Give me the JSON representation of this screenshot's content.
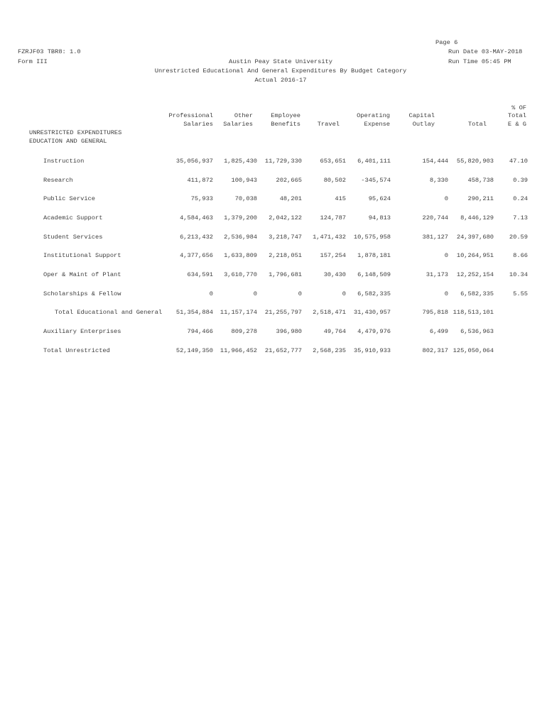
{
  "page": {
    "page_label": "Page 6",
    "report_id": "FZRJF03 TBR8: 1.0",
    "run_date": "Run Date 03-MAY-2018",
    "form": "Form III",
    "university": "Austin Peay State University",
    "title": "Unrestricted Educational And General Expenditures By Budget Category",
    "subtitle": "Actual 2016-17",
    "run_time": "Run Time 05:45 PM"
  },
  "table": {
    "header": {
      "pct_l1": "% OF",
      "pct_l2": "Total",
      "pct_l3": "E & G",
      "col1_l1": "Professional",
      "col1_l2": "Salaries",
      "col2_l1": "Other",
      "col2_l2": "Salaries",
      "col3_l1": "Employee",
      "col3_l2": "Benefits",
      "col4_l2": "Travel",
      "col5_l1": "Operating",
      "col5_l2": "Expense",
      "col6_l1": "Capital",
      "col6_l2": "Outlay",
      "col7_l2": "Total"
    },
    "section_line1": "UNRESTRICTED EXPENDITURES",
    "section_line2": "EDUCATION AND GENERAL",
    "rows": [
      {
        "label": "Instruction",
        "values": [
          "35,056,937",
          "1,825,430",
          "11,729,330",
          "653,651",
          "6,401,111",
          "154,444",
          "55,820,903",
          "47.10"
        ]
      },
      {
        "label": "Research",
        "values": [
          "411,872",
          "100,943",
          "202,665",
          "80,502",
          "-345,574",
          "8,330",
          "458,738",
          "0.39"
        ]
      },
      {
        "label": "Public Service",
        "values": [
          "75,933",
          "70,038",
          "48,201",
          "415",
          "95,624",
          "0",
          "290,211",
          "0.24"
        ]
      },
      {
        "label": "Academic Support",
        "values": [
          "4,584,463",
          "1,379,200",
          "2,042,122",
          "124,787",
          "94,813",
          "220,744",
          "8,446,129",
          "7.13"
        ]
      },
      {
        "label": "Student Services",
        "values": [
          "6,213,432",
          "2,536,984",
          "3,218,747",
          "1,471,432",
          "10,575,958",
          "381,127",
          "24,397,680",
          "20.59"
        ]
      },
      {
        "label": "Institutional Support",
        "values": [
          "4,377,656",
          "1,633,809",
          "2,218,051",
          "157,254",
          "1,878,181",
          "0",
          "10,264,951",
          "8.66"
        ]
      },
      {
        "label": "Oper & Maint of Plant",
        "values": [
          "634,591",
          "3,610,770",
          "1,796,681",
          "30,430",
          "6,148,509",
          "31,173",
          "12,252,154",
          "10.34"
        ]
      },
      {
        "label": "Scholarships & Fellow",
        "values": [
          "0",
          "0",
          "0",
          "0",
          "6,582,335",
          "0",
          "6,582,335",
          "5.55"
        ]
      },
      {
        "label": "Total Educational and General",
        "indent": 2,
        "values": [
          "51,354,884",
          "11,157,174",
          "21,255,797",
          "2,518,471",
          "31,430,957",
          "795,818",
          "118,513,101",
          ""
        ]
      },
      {
        "label": "Auxiliary Enterprises",
        "values": [
          "794,466",
          "809,278",
          "396,980",
          "49,764",
          "4,479,976",
          "6,499",
          "6,536,963",
          ""
        ]
      },
      {
        "label": "Total Unrestricted",
        "values": [
          "52,149,350",
          "11,966,452",
          "21,652,777",
          "2,568,235",
          "35,910,933",
          "802,317",
          "125,050,064",
          ""
        ]
      }
    ]
  }
}
